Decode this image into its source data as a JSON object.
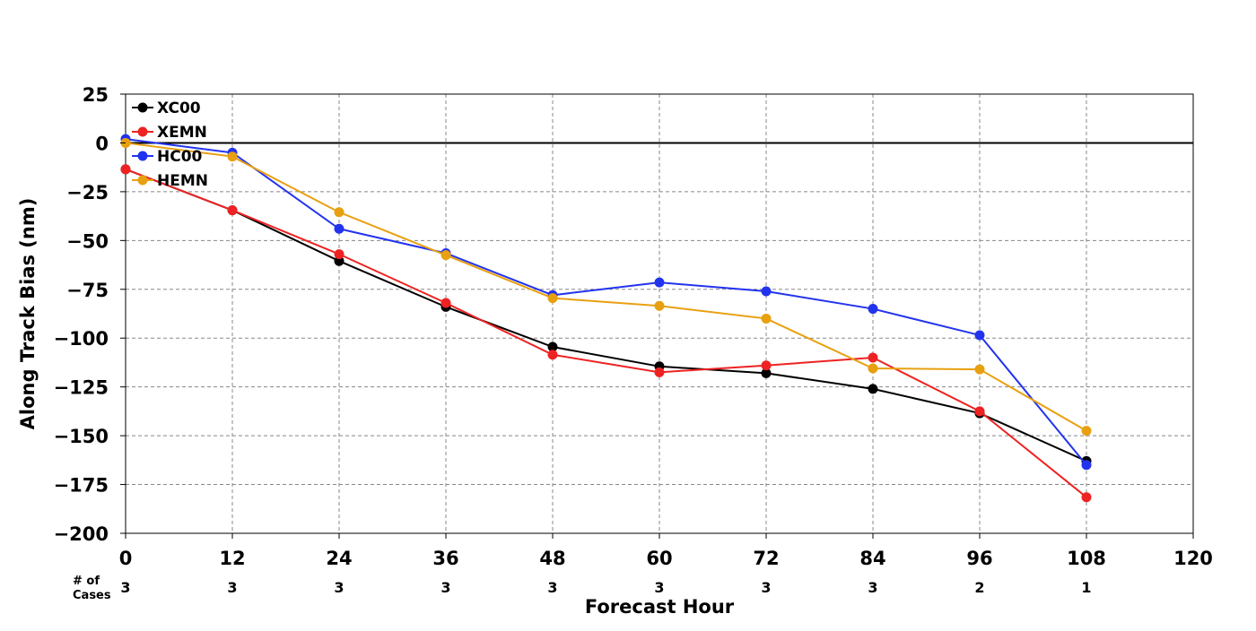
{
  "chart_data": {
    "type": "line",
    "title": "",
    "xlabel": "Forecast Hour",
    "ylabel": "Along Track Bias (nm)",
    "x": [
      0,
      12,
      24,
      36,
      48,
      60,
      72,
      84,
      96,
      108
    ],
    "xlim": [
      0,
      120
    ],
    "ylim": [
      -200,
      25
    ],
    "xticks": [
      0,
      12,
      24,
      36,
      48,
      60,
      72,
      84,
      96,
      108,
      120
    ],
    "yticks": [
      25,
      0,
      -25,
      -50,
      -75,
      -100,
      -125,
      -150,
      -175,
      -200
    ],
    "xtick_labels": [
      "0",
      "12",
      "24",
      "36",
      "48",
      "60",
      "72",
      "84",
      "96",
      "108",
      "120"
    ],
    "ytick_labels": [
      "25",
      "0",
      "−25",
      "−50",
      "−75",
      "−100",
      "−125",
      "−150",
      "−175",
      "−200"
    ],
    "grid": true,
    "zero_line": true,
    "legend_position": "top-left",
    "series": [
      {
        "name": "XC00",
        "color": "#000000",
        "values": [
          -13.5,
          -34.5,
          -60.5,
          -84,
          -104.5,
          -114.5,
          -118,
          -126,
          -138.5,
          -163
        ]
      },
      {
        "name": "XEMN",
        "color": "#ee2222",
        "values": [
          -13.5,
          -34.5,
          -57,
          -82,
          -108.5,
          -117.5,
          -114,
          -110,
          -137.5,
          -181.5
        ]
      },
      {
        "name": "HC00",
        "color": "#2233ee",
        "values": [
          2,
          -5,
          -44,
          -56.5,
          -78,
          -71.5,
          -76,
          -85,
          -98.5,
          -165
        ]
      },
      {
        "name": "HEMN",
        "color": "#e8a010",
        "values": [
          0,
          -7,
          -35.5,
          -57.5,
          -79.5,
          -83.5,
          -90,
          -115.5,
          -116,
          -147.5
        ]
      }
    ],
    "cases": {
      "label_line1": "# of",
      "label_line2": "Cases",
      "values": [
        "3",
        "3",
        "3",
        "3",
        "3",
        "3",
        "3",
        "3",
        "2",
        "1"
      ]
    }
  }
}
